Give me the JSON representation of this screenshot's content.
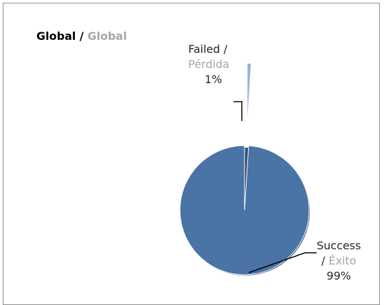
{
  "colors": {
    "success": "#4a73a6",
    "success_dark": "#2f4f78",
    "failed": "#95b3d7",
    "leader": "#000000",
    "secondary_text": "#a6a6a6",
    "border": "#8c8c8c"
  },
  "chart_data": {
    "type": "pie",
    "title": {
      "primary": "Global",
      "separator": " / ",
      "secondary": "Global"
    },
    "slices": [
      {
        "label_en": "Failed",
        "label_sep": " /",
        "label_es": "Pérdida",
        "value": 1,
        "value_label": "1%",
        "color": "#95b3d7"
      },
      {
        "label_en": "Success",
        "label_sep": "/ ",
        "label_es": "Éxito",
        "value": 99,
        "value_label": "99%",
        "color": "#4a73a6"
      }
    ],
    "legend": "none",
    "data_labels": "outside-with-leader-lines"
  }
}
